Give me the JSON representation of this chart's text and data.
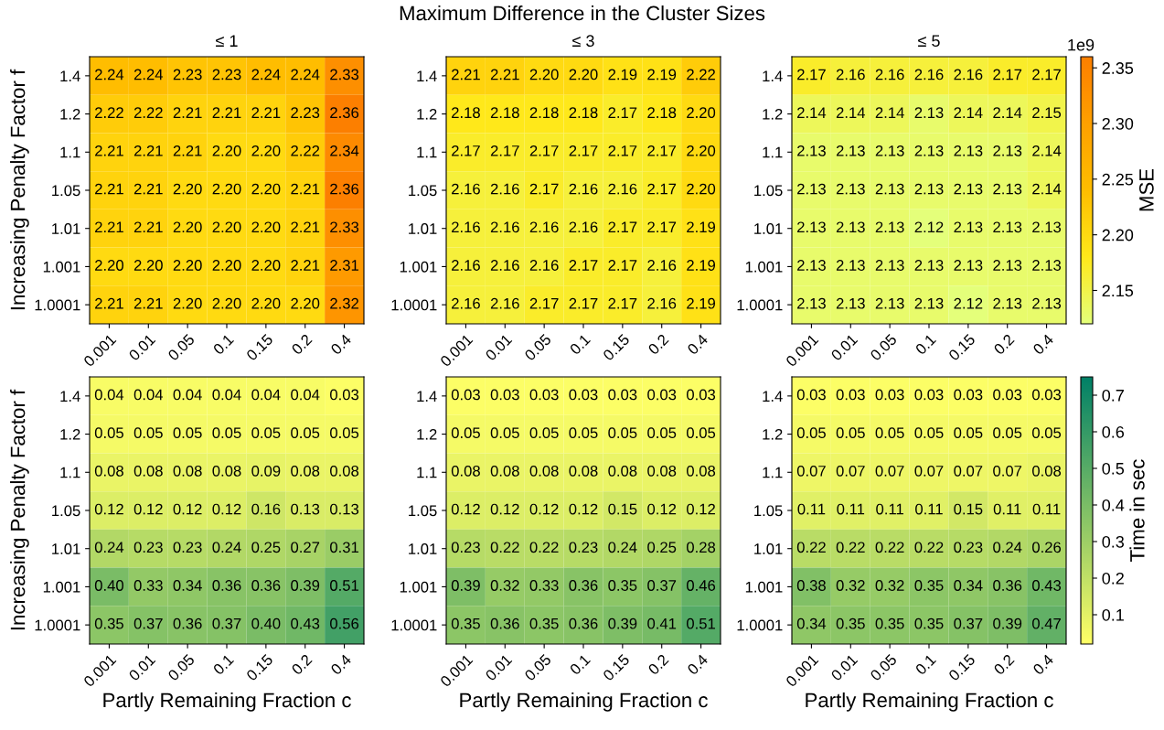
{
  "chart_data": [
    {
      "type": "heatmap",
      "title": "≤ 1",
      "ylabel": "Increasing Penalty Factor f",
      "annotations": [
        "Maximum Difference in the Cluster Sizes"
      ],
      "categories": [
        "0.001",
        "0.01",
        "0.05",
        "0.1",
        "0.15",
        "0.2",
        "0.4"
      ],
      "y_categories": [
        "1.4",
        "1.2",
        "1.1",
        "1.05",
        "1.01",
        "1.001",
        "1.0001"
      ],
      "cells": [
        [
          2.24,
          2.24,
          2.23,
          2.23,
          2.24,
          2.24,
          2.33
        ],
        [
          2.22,
          2.22,
          2.21,
          2.21,
          2.21,
          2.23,
          2.36
        ],
        [
          2.21,
          2.21,
          2.21,
          2.2,
          2.2,
          2.22,
          2.34
        ],
        [
          2.21,
          2.21,
          2.2,
          2.2,
          2.2,
          2.21,
          2.36
        ],
        [
          2.21,
          2.21,
          2.2,
          2.2,
          2.2,
          2.21,
          2.33
        ],
        [
          2.2,
          2.2,
          2.2,
          2.2,
          2.2,
          2.21,
          2.31
        ],
        [
          2.21,
          2.21,
          2.2,
          2.2,
          2.2,
          2.2,
          2.32
        ]
      ],
      "cell_labels": [
        [
          "2.24",
          "2.24",
          "2.23",
          "2.23",
          "2.24",
          "2.24",
          "2.33"
        ],
        [
          "2.22",
          "2.22",
          "2.21",
          "2.21",
          "2.21",
          "2.23",
          "2.36"
        ],
        [
          "2.21",
          "2.21",
          "2.21",
          "2.20",
          "2.20",
          "2.22",
          "2.34"
        ],
        [
          "2.21",
          "2.21",
          "2.20",
          "2.20",
          "2.20",
          "2.21",
          "2.36"
        ],
        [
          "2.21",
          "2.21",
          "2.20",
          "2.20",
          "2.20",
          "2.21",
          "2.33"
        ],
        [
          "2.20",
          "2.20",
          "2.20",
          "2.20",
          "2.20",
          "2.21",
          "2.31"
        ],
        [
          "2.21",
          "2.21",
          "2.20",
          "2.20",
          "2.20",
          "2.20",
          "2.32"
        ]
      ]
    },
    {
      "type": "heatmap",
      "title": "≤ 3",
      "categories": [
        "0.001",
        "0.01",
        "0.05",
        "0.1",
        "0.15",
        "0.2",
        "0.4"
      ],
      "y_categories": [
        "1.4",
        "1.2",
        "1.1",
        "1.05",
        "1.01",
        "1.001",
        "1.0001"
      ],
      "cells": [
        [
          2.21,
          2.21,
          2.2,
          2.2,
          2.19,
          2.19,
          2.22
        ],
        [
          2.18,
          2.18,
          2.18,
          2.18,
          2.17,
          2.18,
          2.2
        ],
        [
          2.17,
          2.17,
          2.17,
          2.17,
          2.17,
          2.17,
          2.2
        ],
        [
          2.16,
          2.16,
          2.17,
          2.16,
          2.16,
          2.17,
          2.2
        ],
        [
          2.16,
          2.16,
          2.16,
          2.16,
          2.17,
          2.17,
          2.19
        ],
        [
          2.16,
          2.16,
          2.16,
          2.17,
          2.17,
          2.16,
          2.19
        ],
        [
          2.16,
          2.16,
          2.17,
          2.17,
          2.17,
          2.16,
          2.19
        ]
      ],
      "cell_labels": [
        [
          "2.21",
          "2.21",
          "2.20",
          "2.20",
          "2.19",
          "2.19",
          "2.22"
        ],
        [
          "2.18",
          "2.18",
          "2.18",
          "2.18",
          "2.17",
          "2.18",
          "2.20"
        ],
        [
          "2.17",
          "2.17",
          "2.17",
          "2.17",
          "2.17",
          "2.17",
          "2.20"
        ],
        [
          "2.16",
          "2.16",
          "2.17",
          "2.16",
          "2.16",
          "2.17",
          "2.20"
        ],
        [
          "2.16",
          "2.16",
          "2.16",
          "2.16",
          "2.17",
          "2.17",
          "2.19"
        ],
        [
          "2.16",
          "2.16",
          "2.16",
          "2.17",
          "2.17",
          "2.16",
          "2.19"
        ],
        [
          "2.16",
          "2.16",
          "2.17",
          "2.17",
          "2.17",
          "2.16",
          "2.19"
        ]
      ]
    },
    {
      "type": "heatmap",
      "title": "≤ 5",
      "clabel": "MSE",
      "annotations": [
        "1e9"
      ],
      "categories": [
        "0.001",
        "0.01",
        "0.05",
        "0.1",
        "0.15",
        "0.2",
        "0.4"
      ],
      "y_categories": [
        "1.4",
        "1.2",
        "1.1",
        "1.05",
        "1.01",
        "1.001",
        "1.0001"
      ],
      "clim": [
        2.12,
        2.36
      ],
      "cticks": [
        2.15,
        {
          "value": 2.2,
          "label": "2.20"
        },
        2.25,
        {
          "value": 2.3,
          "label": "2.30"
        },
        2.35
      ],
      "data_labels": true,
      "cells": [
        [
          2.17,
          2.16,
          2.16,
          2.16,
          2.16,
          2.17,
          2.17
        ],
        [
          2.14,
          2.14,
          2.14,
          2.13,
          2.14,
          2.14,
          2.15
        ],
        [
          2.13,
          2.13,
          2.13,
          2.13,
          2.13,
          2.13,
          2.14
        ],
        [
          2.13,
          2.13,
          2.13,
          2.13,
          2.13,
          2.13,
          2.14
        ],
        [
          2.13,
          2.13,
          2.13,
          2.12,
          2.13,
          2.13,
          2.13
        ],
        [
          2.13,
          2.13,
          2.13,
          2.13,
          2.13,
          2.13,
          2.13
        ],
        [
          2.13,
          2.13,
          2.13,
          2.13,
          2.12,
          2.13,
          2.13
        ]
      ]
    },
    {
      "type": "heatmap",
      "ylabel": "Increasing Penalty Factor f",
      "xlabel": "Partly Remaining Fraction c",
      "categories": [
        "0.001",
        "0.01",
        "0.05",
        "0.1",
        "0.15",
        "0.2",
        "0.4"
      ],
      "y_categories": [
        "1.4",
        "1.2",
        "1.1",
        "1.05",
        "1.01",
        "1.001",
        "1.0001"
      ],
      "cells": [
        [
          0.04,
          0.04,
          0.04,
          0.04,
          0.04,
          0.04,
          0.03
        ],
        [
          0.05,
          0.05,
          0.05,
          0.05,
          0.05,
          0.05,
          0.05
        ],
        [
          0.08,
          0.08,
          0.08,
          0.08,
          0.09,
          0.08,
          0.08
        ],
        [
          0.12,
          0.12,
          0.12,
          0.12,
          0.16,
          0.13,
          0.13
        ],
        [
          0.24,
          0.23,
          0.23,
          0.24,
          0.25,
          0.27,
          0.31
        ],
        [
          0.4,
          0.33,
          0.34,
          0.36,
          0.36,
          0.39,
          0.51
        ],
        [
          0.35,
          0.37,
          0.36,
          0.37,
          0.4,
          0.43,
          0.56
        ]
      ],
      "cell_labels": [
        [
          "0.04",
          "0.04",
          "0.04",
          "0.04",
          "0.04",
          "0.04",
          "0.03"
        ],
        [
          "0.05",
          "0.05",
          "0.05",
          "0.05",
          "0.05",
          "0.05",
          "0.05"
        ],
        [
          "0.08",
          "0.08",
          "0.08",
          "0.08",
          "0.09",
          "0.08",
          "0.08"
        ],
        [
          "0.12",
          "0.12",
          "0.12",
          "0.12",
          "0.16",
          "0.13",
          "0.13"
        ],
        [
          "0.24",
          "0.23",
          "0.23",
          "0.24",
          "0.25",
          "0.27",
          "0.31"
        ],
        [
          "0.40",
          "0.33",
          "0.34",
          "0.36",
          "0.36",
          "0.39",
          "0.51"
        ],
        [
          "0.35",
          "0.37",
          "0.36",
          "0.37",
          "0.40",
          "0.43",
          "0.56"
        ]
      ]
    },
    {
      "type": "heatmap",
      "xlabel": "Partly Remaining Fraction c",
      "categories": [
        "0.001",
        "0.01",
        "0.05",
        "0.1",
        "0.15",
        "0.2",
        "0.4"
      ],
      "y_categories": [
        "1.4",
        "1.2",
        "1.1",
        "1.05",
        "1.01",
        "1.001",
        "1.0001"
      ],
      "data_labels": true,
      "cells": [
        [
          0.03,
          0.03,
          0.03,
          0.03,
          0.03,
          0.03,
          0.03
        ],
        [
          0.05,
          0.05,
          0.05,
          0.05,
          0.05,
          0.05,
          0.05
        ],
        [
          0.08,
          0.08,
          0.08,
          0.08,
          0.08,
          0.08,
          0.08
        ],
        [
          0.12,
          0.12,
          0.12,
          0.12,
          0.15,
          0.12,
          0.12
        ],
        [
          0.23,
          0.22,
          0.22,
          0.23,
          0.24,
          0.25,
          0.28
        ],
        [
          0.39,
          0.32,
          0.33,
          0.36,
          0.35,
          0.37,
          0.46
        ],
        [
          0.35,
          0.36,
          0.35,
          0.36,
          0.39,
          0.41,
          0.51
        ]
      ]
    },
    {
      "type": "heatmap",
      "xlabel": "Partly Remaining Fraction c",
      "clabel": "Time in sec",
      "categories": [
        "0.001",
        "0.01",
        "0.05",
        "0.1",
        "0.15",
        "0.2",
        "0.4"
      ],
      "y_categories": [
        "1.4",
        "1.2",
        "1.1",
        "1.05",
        "1.01",
        "1.001",
        "1.0001"
      ],
      "clim": [
        0.02,
        0.75
      ],
      "cticks": [
        0.1,
        0.2,
        0.3,
        0.4,
        0.5,
        0.6,
        0.7
      ],
      "data_labels": true,
      "cells": [
        [
          0.03,
          0.03,
          0.03,
          0.03,
          0.03,
          0.03,
          0.03
        ],
        [
          0.05,
          0.05,
          0.05,
          0.05,
          0.05,
          0.05,
          0.05
        ],
        [
          0.07,
          0.07,
          0.07,
          0.07,
          0.07,
          0.07,
          0.08
        ],
        [
          0.11,
          0.11,
          0.11,
          0.11,
          0.15,
          0.11,
          0.11
        ],
        [
          0.22,
          0.22,
          0.22,
          0.22,
          0.23,
          0.24,
          0.26
        ],
        [
          0.38,
          0.32,
          0.32,
          0.35,
          0.34,
          0.36,
          0.43
        ],
        [
          0.34,
          0.35,
          0.35,
          0.35,
          0.37,
          0.39,
          0.47
        ]
      ]
    }
  ]
}
